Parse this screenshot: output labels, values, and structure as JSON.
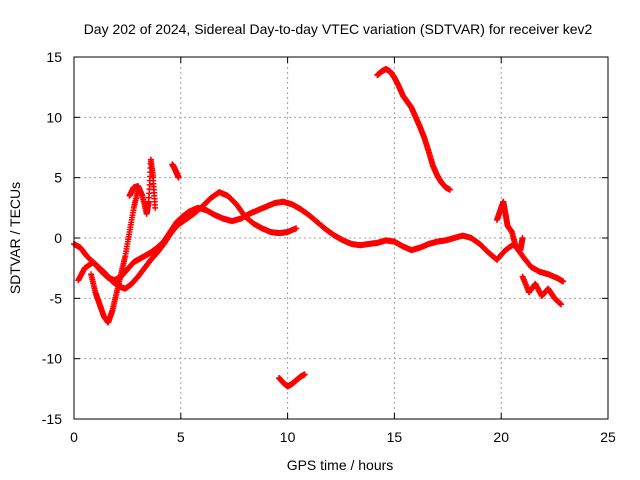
{
  "chart_data": {
    "type": "scatter",
    "title": "Day 202 of 2024, Sidereal Day-to-day VTEC variation (SDTVAR) for receiver kev2",
    "xlabel": "GPS time / hours",
    "ylabel": "SDTVAR / TECUs",
    "xlim": [
      0,
      25
    ],
    "ylim": [
      -15,
      15
    ],
    "xticks": [
      0,
      5,
      10,
      15,
      20,
      25
    ],
    "yticks": [
      -15,
      -10,
      -5,
      0,
      5,
      10,
      15
    ],
    "grid": true,
    "marker": "+",
    "color": "#ff0000",
    "series": [
      {
        "name": "segment-a",
        "x": [
          0.0,
          0.3,
          0.6,
          1.0,
          1.3,
          1.6,
          1.9,
          2.2,
          2.5,
          2.8,
          3.0,
          3.3,
          3.6,
          3.9,
          4.2,
          4.5,
          4.8,
          5.1,
          5.4,
          5.8,
          6.2,
          6.6,
          7.0,
          7.4,
          7.8,
          8.2,
          8.6,
          9.0,
          9.4,
          9.8,
          10.2,
          10.6,
          11.0,
          11.4,
          11.8,
          12.2,
          12.6,
          13.0,
          13.4,
          13.8,
          14.2,
          14.6,
          15.0,
          15.4,
          15.8,
          16.2,
          16.6,
          17.0,
          17.4,
          17.8,
          18.2,
          18.6,
          19.0,
          19.4,
          19.8,
          20.2,
          20.6,
          21.0,
          21.4,
          21.8,
          22.2,
          22.6,
          22.9
        ],
        "y": [
          -0.5,
          -0.8,
          -1.5,
          -2.2,
          -2.8,
          -3.3,
          -3.5,
          -3.2,
          -2.6,
          -2.0,
          -1.8,
          -1.5,
          -1.2,
          -0.8,
          -0.3,
          0.5,
          1.3,
          1.8,
          2.2,
          2.5,
          2.3,
          1.9,
          1.6,
          1.4,
          1.6,
          2.0,
          2.3,
          2.6,
          2.9,
          3.0,
          2.8,
          2.4,
          1.9,
          1.3,
          0.7,
          0.2,
          -0.2,
          -0.5,
          -0.6,
          -0.5,
          -0.4,
          -0.2,
          -0.3,
          -0.7,
          -1.0,
          -0.8,
          -0.5,
          -0.3,
          -0.2,
          0.0,
          0.2,
          0.0,
          -0.5,
          -1.2,
          -1.8,
          -1.0,
          -0.5,
          -1.5,
          -2.4,
          -2.8,
          -3.0,
          -3.3,
          -3.6
        ]
      },
      {
        "name": "segment-b",
        "x": [
          0.2,
          0.5,
          0.9,
          1.2,
          1.5,
          1.8,
          2.1,
          2.4,
          2.7,
          3.0,
          3.3,
          3.6,
          3.9,
          4.2,
          4.5,
          4.8,
          5.2,
          5.6,
          6.0,
          6.4,
          6.8,
          7.2,
          7.6,
          8.0,
          8.4,
          8.8,
          9.2,
          9.6,
          10.0,
          10.4
        ],
        "y": [
          -3.5,
          -2.5,
          -2.0,
          -2.5,
          -3.0,
          -3.6,
          -4.0,
          -4.2,
          -3.8,
          -3.2,
          -2.5,
          -1.8,
          -1.2,
          -0.5,
          0.3,
          1.0,
          1.5,
          2.0,
          2.6,
          3.3,
          3.8,
          3.5,
          2.8,
          1.8,
          1.2,
          0.8,
          0.5,
          0.4,
          0.5,
          0.8
        ]
      },
      {
        "name": "segment-c",
        "x": [
          0.8,
          1.0,
          1.2,
          1.4,
          1.6,
          1.8,
          2.0,
          2.2,
          2.4,
          2.6,
          2.8,
          3.0
        ],
        "y": [
          -3.0,
          -4.5,
          -5.5,
          -6.5,
          -7.0,
          -6.0,
          -4.5,
          -3.0,
          -1.5,
          0.5,
          2.5,
          4.0
        ]
      },
      {
        "name": "segment-d",
        "x": [
          2.6,
          2.8,
          3.0,
          3.2,
          3.4,
          3.5,
          3.6,
          3.7,
          3.8
        ],
        "y": [
          3.5,
          4.2,
          4.3,
          3.5,
          2.0,
          3.0,
          6.5,
          5.0,
          2.5
        ]
      },
      {
        "name": "segment-e",
        "x": [
          4.6,
          4.7,
          4.8,
          4.9
        ],
        "y": [
          6.1,
          5.8,
          5.4,
          5.0
        ]
      },
      {
        "name": "segment-f",
        "x": [
          14.2,
          14.4,
          14.6,
          14.8,
          15.0,
          15.2,
          15.4,
          15.6,
          15.8,
          16.0,
          16.2,
          16.4,
          16.6,
          16.8,
          17.0,
          17.2,
          17.4,
          17.6
        ],
        "y": [
          13.5,
          13.8,
          14.0,
          13.8,
          13.3,
          12.6,
          11.8,
          11.3,
          10.8,
          10.0,
          9.2,
          8.3,
          7.2,
          6.0,
          5.2,
          4.6,
          4.2,
          4.0
        ]
      },
      {
        "name": "segment-g",
        "x": [
          9.6,
          9.8,
          10.0,
          10.2,
          10.4,
          10.6,
          10.8
        ],
        "y": [
          -11.6,
          -12.0,
          -12.3,
          -12.1,
          -11.8,
          -11.5,
          -11.3
        ]
      },
      {
        "name": "segment-h",
        "x": [
          19.8,
          20.0,
          20.1,
          20.2,
          20.3,
          20.5,
          20.7,
          20.9,
          21.0
        ],
        "y": [
          1.5,
          2.5,
          3.0,
          2.0,
          1.0,
          0.5,
          -0.8,
          -1.0,
          0.0
        ]
      },
      {
        "name": "segment-i",
        "x": [
          21.0,
          21.3,
          21.6,
          21.9,
          22.2,
          22.5,
          22.8
        ],
        "y": [
          -3.2,
          -4.5,
          -3.8,
          -4.8,
          -4.2,
          -5.0,
          -5.5
        ]
      }
    ]
  }
}
